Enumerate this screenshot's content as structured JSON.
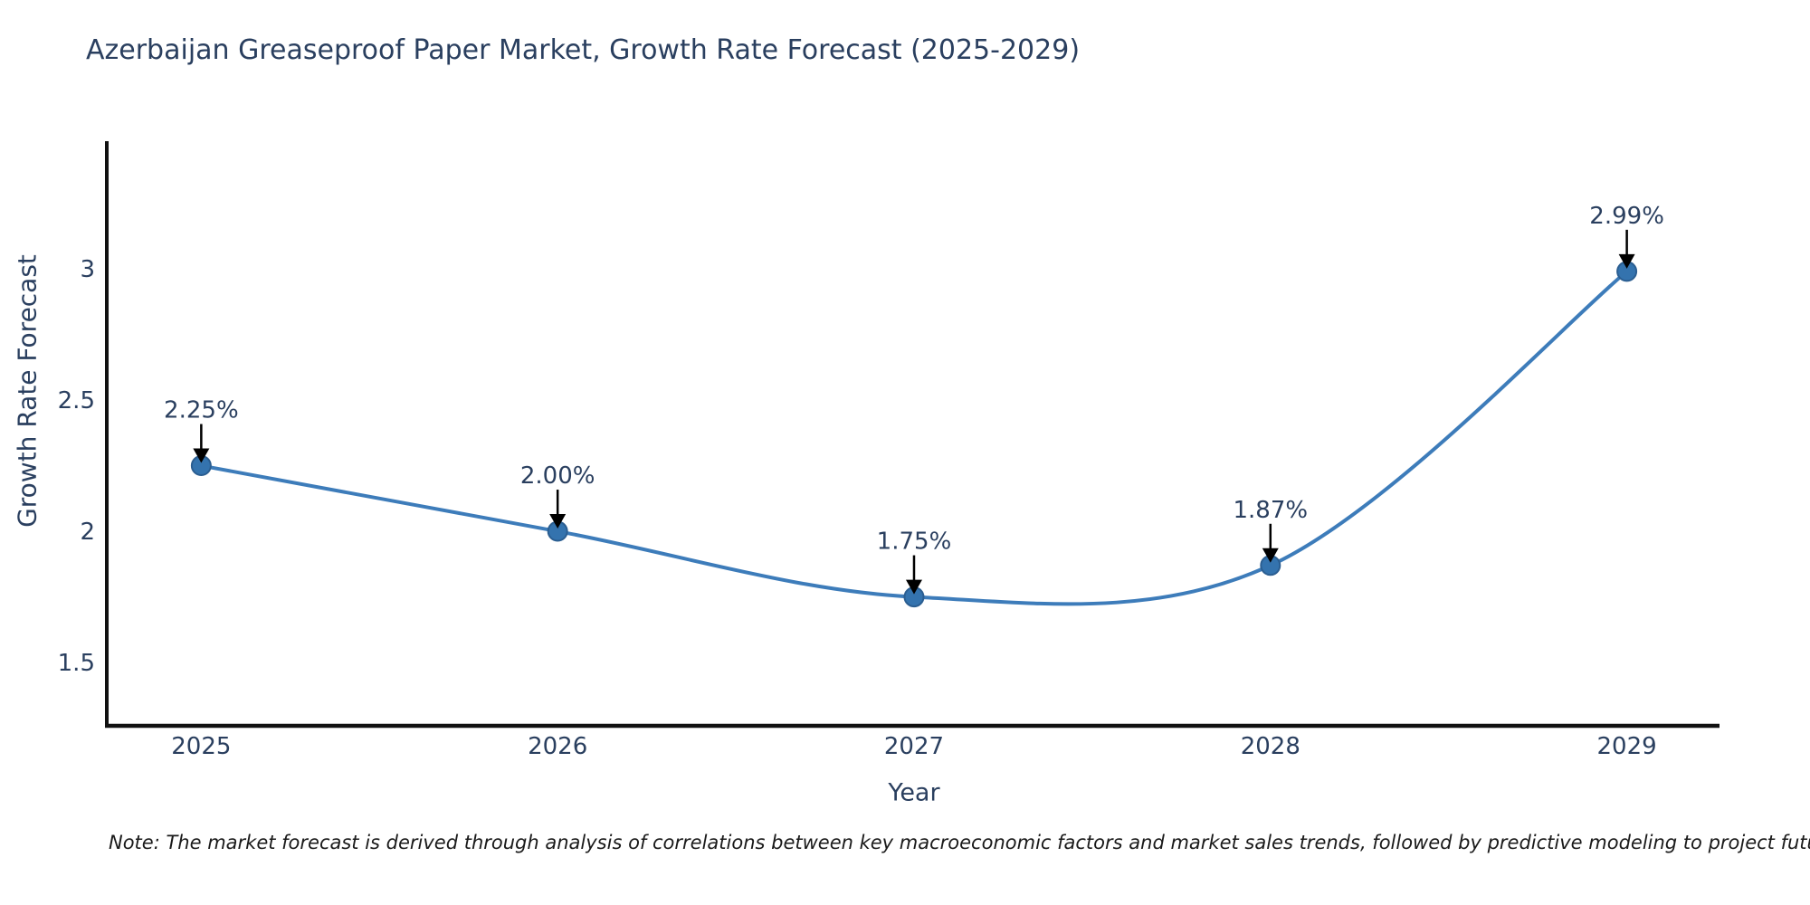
{
  "chart_data": {
    "type": "line",
    "title": "Azerbaijan Greaseproof Paper Market, Growth Rate Forecast (2025-2029)",
    "xlabel": "Year",
    "ylabel": "Growth Rate Forecast",
    "x": [
      2025,
      2026,
      2027,
      2028,
      2029
    ],
    "xtick_labels": [
      "2025",
      "2026",
      "2027",
      "2028",
      "2029"
    ],
    "series": [
      {
        "name": "Growth Rate Forecast",
        "values": [
          2.25,
          2.0,
          1.75,
          1.87,
          2.99
        ],
        "point_labels": [
          "2.25%",
          "2.00%",
          "1.75%",
          "1.87%",
          "2.99%"
        ]
      }
    ],
    "yticks": [
      1.5,
      2,
      2.5,
      3
    ],
    "ytick_labels": [
      "1.5",
      "2",
      "2.5",
      "3"
    ],
    "xlim": [
      2024.735,
      2029.26
    ],
    "ylim": [
      1.259,
      3.486
    ],
    "grid": false,
    "legend": "none",
    "line_shape": "spline",
    "line_color": "#3d7cba",
    "marker_color": "#3473ae",
    "marker_edge_color": "#2b5e91",
    "axis_color": "#111111",
    "text_color": "#2a3f5f",
    "annotation_arrow_color": "#000000"
  },
  "note": "Note: The market forecast is derived through analysis of correlations between key macroeconomic factors and market sales trends, followed by predictive modeling to project future sales"
}
